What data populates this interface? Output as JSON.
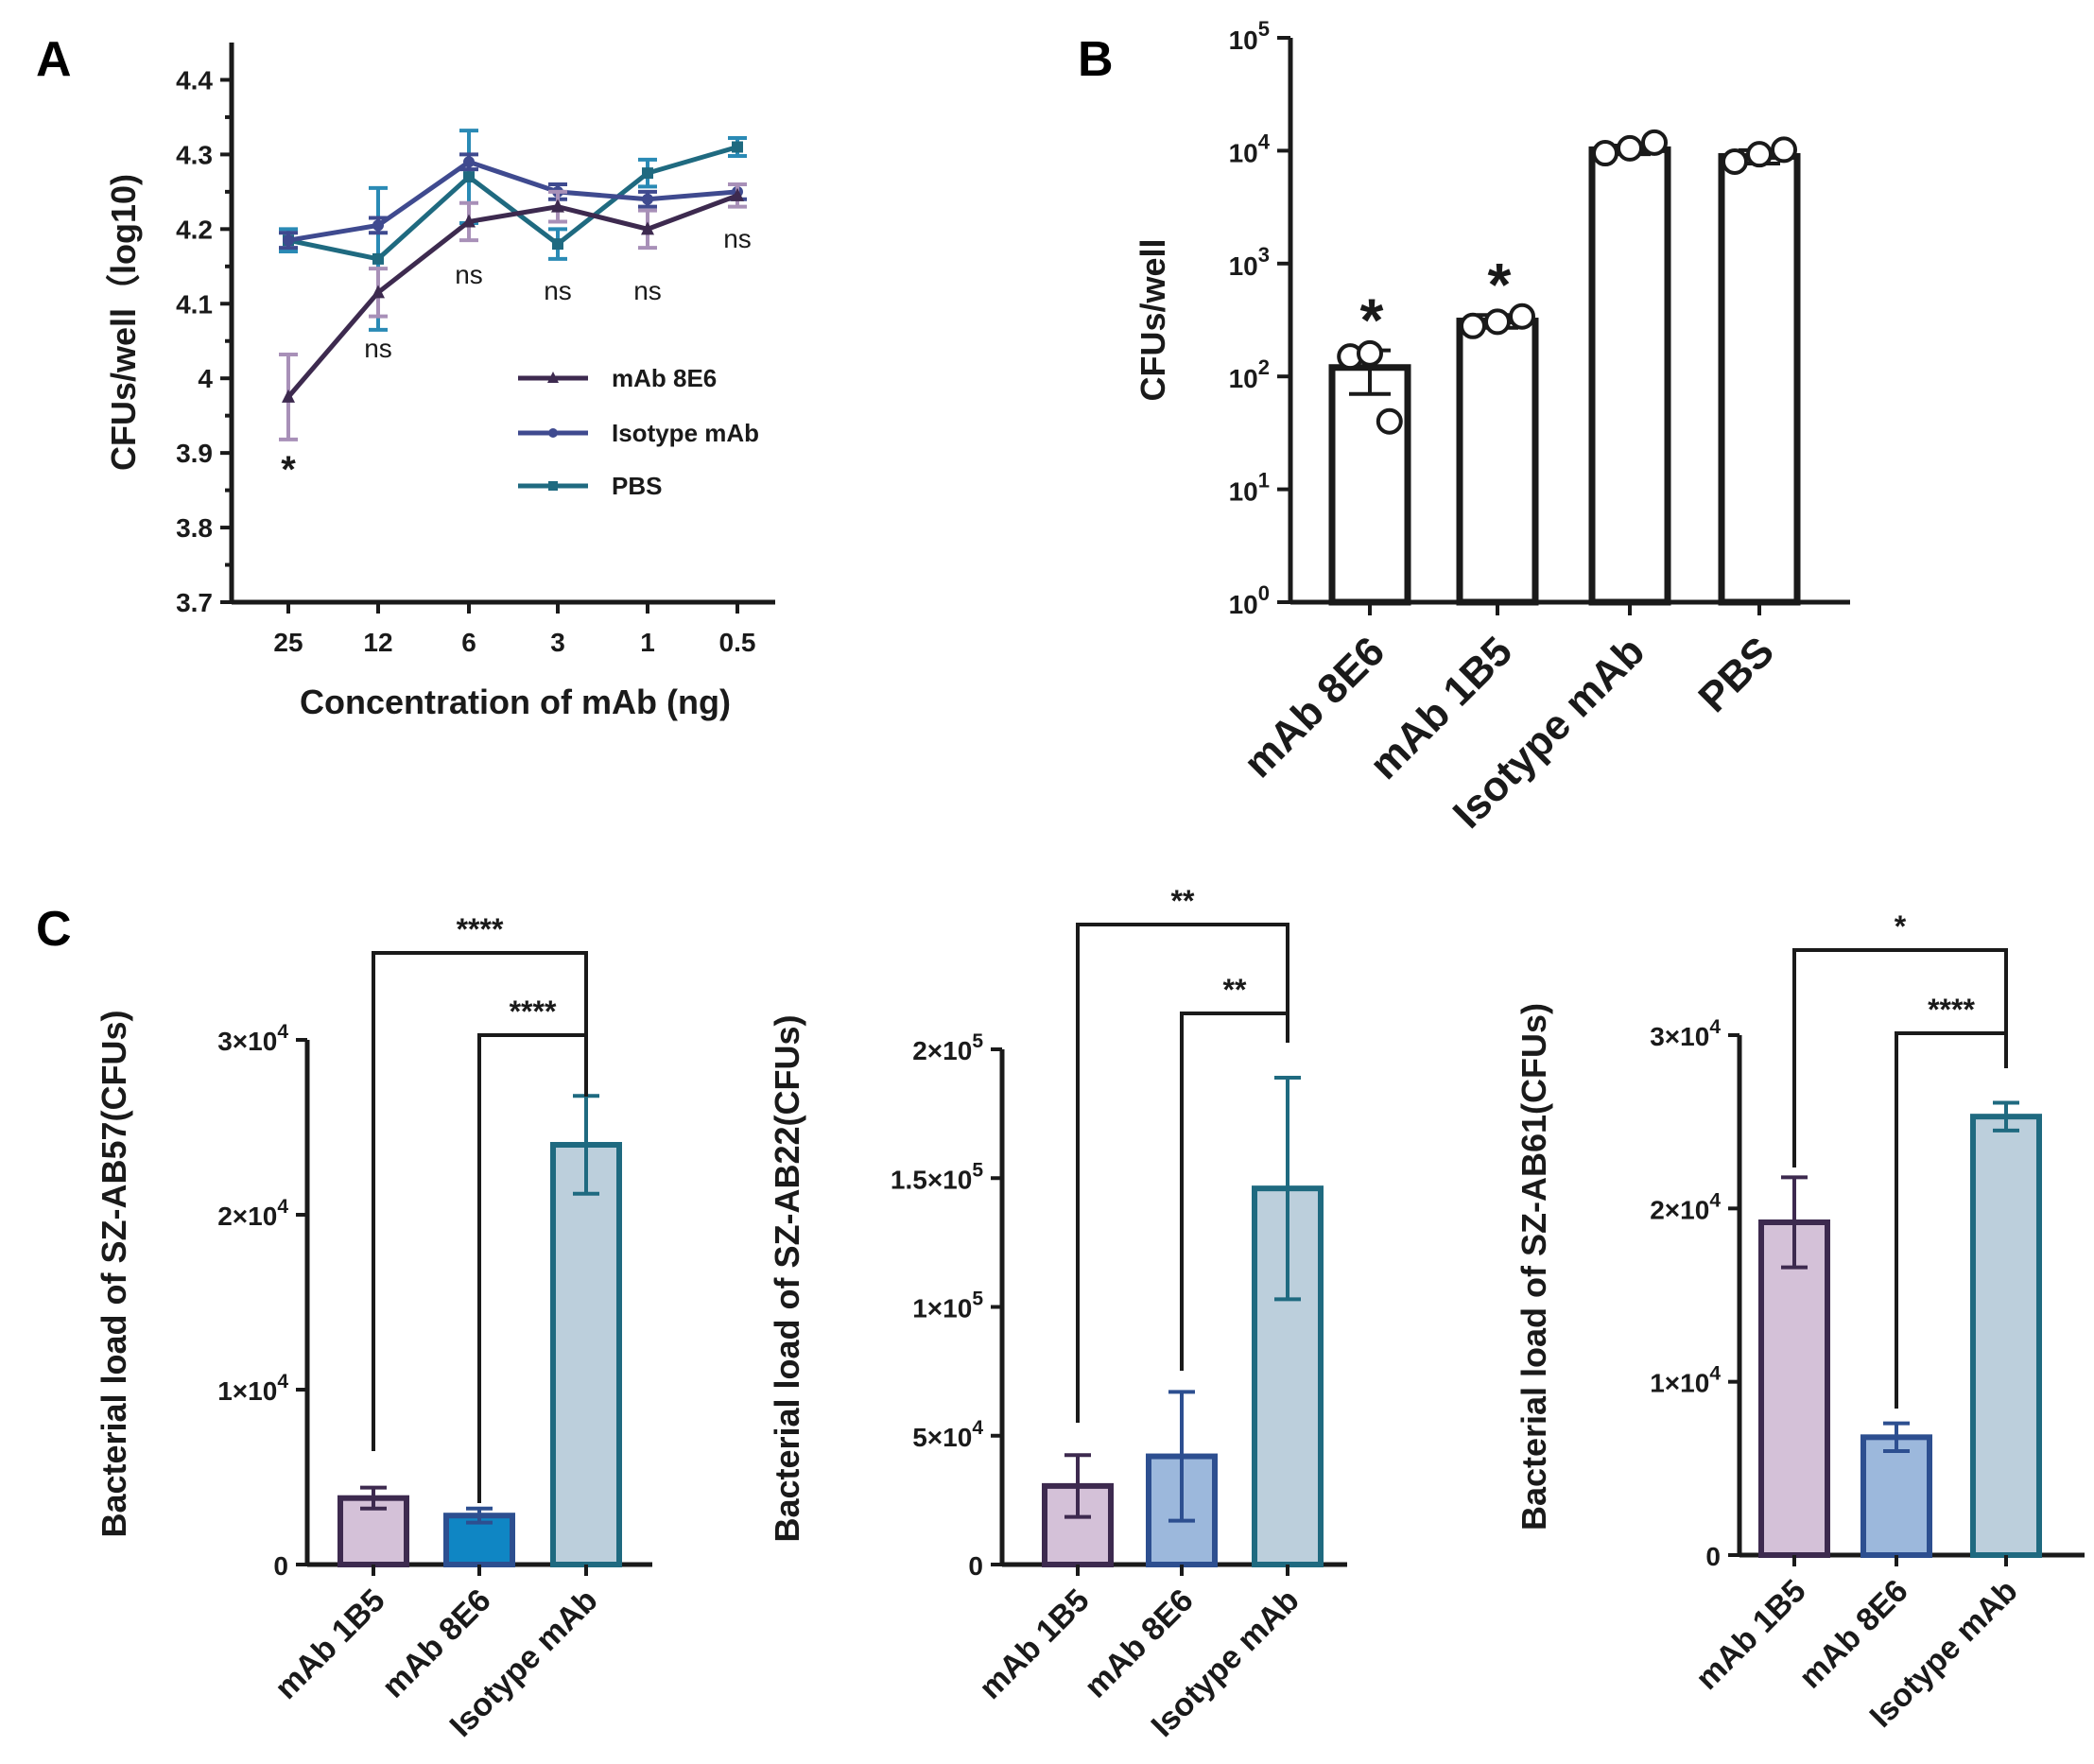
{
  "panels": {
    "A": "A",
    "B": "B",
    "C": "C"
  },
  "chart_data": [
    {
      "id": "A",
      "type": "line",
      "title": "",
      "xlabel": "Concentration of mAb (ng)",
      "ylabel": "CFUs/well（log10)",
      "categories": [
        "25",
        "12",
        "6",
        "3",
        "1",
        "0.5"
      ],
      "ylim": [
        3.7,
        4.45
      ],
      "yticks": [
        3.7,
        3.8,
        3.9,
        4,
        4.1,
        4.2,
        4.3,
        4.4
      ],
      "ytick_labels": [
        "3.7",
        "3.8",
        "3.9",
        "4",
        "4.1",
        "4.2",
        "4.3",
        "4.4"
      ],
      "legend_position": "center-right",
      "series": [
        {
          "name": "mAb 8E6",
          "color": "#3d2a4f",
          "error_color": "#a890b8",
          "marker": "triangle",
          "values": [
            3.975,
            4.115,
            4.21,
            4.23,
            4.2,
            4.245
          ],
          "errors": [
            0.057,
            0.032,
            0.025,
            0.02,
            0.025,
            0.015
          ]
        },
        {
          "name": "Isotype mAb",
          "color": "#3f4a8f",
          "error_color": "#3f4a8f",
          "marker": "circle",
          "values": [
            4.185,
            4.205,
            4.29,
            4.25,
            4.24,
            4.25
          ],
          "errors": [
            0.01,
            0.01,
            0.01,
            0.01,
            0.01,
            0.01
          ]
        },
        {
          "name": "PBS",
          "color": "#1f6a80",
          "error_color": "#2a8ab5",
          "marker": "square",
          "values": [
            4.185,
            4.16,
            4.27,
            4.18,
            4.275,
            4.31
          ],
          "errors": [
            0.015,
            0.095,
            0.062,
            0.02,
            0.018,
            0.012
          ]
        }
      ],
      "annotations": [
        "*",
        "ns",
        "ns",
        "ns",
        "ns",
        "ns"
      ]
    },
    {
      "id": "B",
      "type": "bar",
      "title": "",
      "xlabel": "",
      "ylabel": "CFUs/well",
      "yscale": "log",
      "ylim": [
        1,
        100000
      ],
      "ytick_base": "10",
      "ytick_exponents": [
        "0",
        "1",
        "2",
        "3",
        "4",
        "5"
      ],
      "categories": [
        "mAb 8E6",
        "mAb 1B5",
        "Isotype mAb",
        "PBS"
      ],
      "values": [
        120,
        310,
        10200,
        8900
      ],
      "errors": [
        50,
        40,
        900,
        1200
      ],
      "points": [
        [
          150,
          160,
          40
        ],
        [
          280,
          305,
          340
        ],
        [
          9500,
          10500,
          11800
        ],
        [
          8000,
          9300,
          10200
        ]
      ],
      "annotations": [
        "*",
        "*",
        "",
        ""
      ]
    },
    {
      "id": "C1",
      "type": "bar",
      "title": "",
      "xlabel": "",
      "ylabel": "Bacterial load of SZ-AB57(CFUs)",
      "ylim": [
        0,
        30000
      ],
      "ytick_labels": [
        "0",
        "1×10",
        "2×10",
        "3×10"
      ],
      "ytick_exponents": [
        "",
        "4",
        "4",
        "4"
      ],
      "categories": [
        "mAb 1B5",
        "mAb 8E6",
        "Isotype mAb"
      ],
      "values": [
        3800,
        2800,
        24000
      ],
      "errors": [
        600,
        400,
        2800
      ],
      "colors": [
        "#d4c1d8",
        "#0f86c4",
        "#bccfdc"
      ],
      "edge_colors": [
        "#3d2a4f",
        "#2d4f90",
        "#1f6a80"
      ],
      "brackets": [
        {
          "from": "mAb 1B5",
          "to": "Isotype mAb",
          "label": "****"
        },
        {
          "from": "mAb 8E6",
          "to": "Isotype mAb",
          "label": "****"
        }
      ]
    },
    {
      "id": "C2",
      "type": "bar",
      "title": "",
      "xlabel": "",
      "ylabel": "Bacterial load of SZ-AB22(CFUs)",
      "ylim": [
        0,
        200000
      ],
      "ytick_labels": [
        "0",
        "5×10",
        "1×10",
        "1.5×10",
        "2×10"
      ],
      "ytick_exponents": [
        "",
        "4",
        "5",
        "5",
        "5"
      ],
      "categories": [
        "mAb 1B5",
        "mAb 8E6",
        "Isotype mAb"
      ],
      "values": [
        30500,
        42000,
        146000
      ],
      "errors": [
        12000,
        25000,
        43000
      ],
      "colors": [
        "#d4c1d8",
        "#9cb8dc",
        "#bccfdc"
      ],
      "edge_colors": [
        "#3d2a4f",
        "#2d4f90",
        "#1f6a80"
      ],
      "brackets": [
        {
          "from": "mAb 1B5",
          "to": "Isotype mAb",
          "label": "**"
        },
        {
          "from": "mAb 8E6",
          "to": "Isotype mAb",
          "label": "**"
        }
      ]
    },
    {
      "id": "C3",
      "type": "bar",
      "title": "",
      "xlabel": "",
      "ylabel": "Bacterial load of SZ-AB61(CFUs)",
      "ylim": [
        0,
        30000
      ],
      "ytick_labels": [
        "0",
        "1×10",
        "2×10",
        "3×10"
      ],
      "ytick_exponents": [
        "",
        "4",
        "4",
        "4"
      ],
      "categories": [
        "mAb 1B5",
        "mAb 8E6",
        "Isotype mAb"
      ],
      "values": [
        19200,
        6800,
        25300
      ],
      "errors": [
        2600,
        800,
        800
      ],
      "colors": [
        "#d4c1d8",
        "#9cb8dc",
        "#bccfdc"
      ],
      "edge_colors": [
        "#3d2a4f",
        "#2d4f90",
        "#1f6a80"
      ],
      "brackets": [
        {
          "from": "mAb 1B5",
          "to": "Isotype mAb",
          "label": "*"
        },
        {
          "from": "mAb 8E6",
          "to": "Isotype mAb",
          "label": "****"
        }
      ]
    }
  ]
}
